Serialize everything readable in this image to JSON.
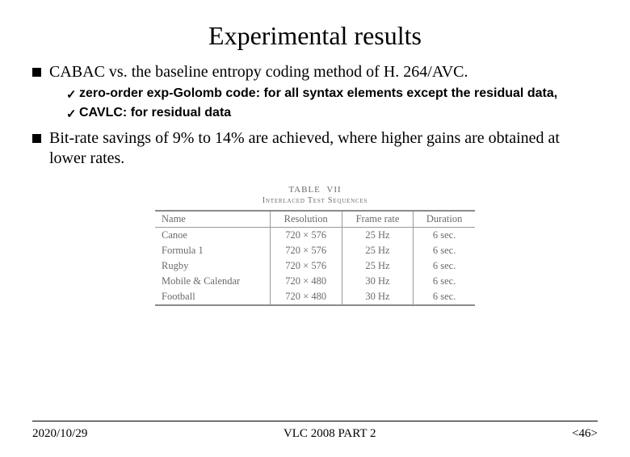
{
  "title": "Experimental results",
  "bullets": [
    {
      "text": "CABAC vs. the baseline entropy coding method of H. 264/AVC.",
      "sub": [
        "zero-order exp-Golomb code: for all syntax elements except the residual data,",
        "CAVLC: for residual data"
      ]
    },
    {
      "text": "Bit-rate savings of 9% to 14% are achieved, where higher gains are obtained at lower rates.",
      "sub": []
    }
  ],
  "table": {
    "caption_top": "TABLE  VII",
    "caption_sub": "Interlaced Test Sequences",
    "columns": [
      "Name",
      "Resolution",
      "Frame rate",
      "Duration"
    ],
    "rows": [
      [
        "Canoe",
        "720 × 576",
        "25 Hz",
        "6 sec."
      ],
      [
        "Formula 1",
        "720 × 576",
        "25 Hz",
        "6 sec."
      ],
      [
        "Rugby",
        "720 × 576",
        "25 Hz",
        "6 sec."
      ],
      [
        "Mobile & Calendar",
        "720 × 480",
        "30 Hz",
        "6 sec."
      ],
      [
        "Football",
        "720 × 480",
        "30 Hz",
        "6 sec."
      ]
    ]
  },
  "footer": {
    "left": "2020/10/29",
    "center": "VLC 2008 PART 2",
    "right": "<46>"
  },
  "colors": {
    "text": "#000000",
    "table_text": "#6a6a6a",
    "table_border": "#8a8a8a",
    "background": "#ffffff"
  }
}
